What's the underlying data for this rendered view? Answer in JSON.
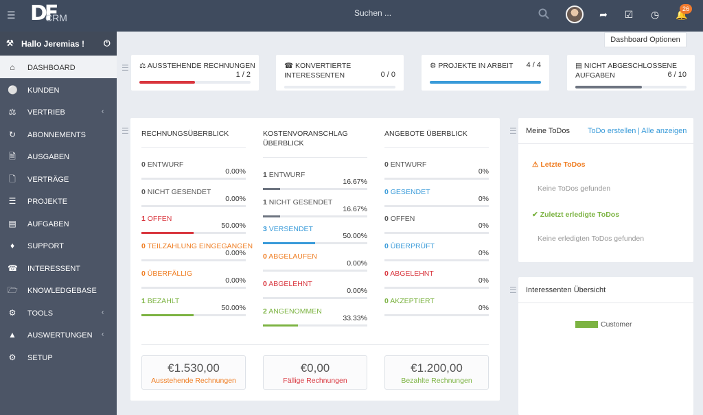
{
  "colors": {
    "red": "#d9363e",
    "blue": "#3a9bd9",
    "gray": "#6d7480",
    "green": "#7cb342",
    "orange": "#ef7d22"
  },
  "topbar": {
    "logo_main": "DF",
    "logo_sub": "CRM",
    "search_placeholder": "Suchen ...",
    "notification_count": "26"
  },
  "sidebar": {
    "greeting": "Hallo Jeremias !",
    "items": [
      {
        "label": "DASHBOARD",
        "icon": "home-icon"
      },
      {
        "label": "KUNDEN",
        "icon": "user-icon"
      },
      {
        "label": "VERTRIEB",
        "icon": "balance-scale-icon"
      },
      {
        "label": "ABONNEMENTS",
        "icon": "refresh-icon"
      },
      {
        "label": "AUSGABEN",
        "icon": "file-text-icon"
      },
      {
        "label": "VERTRÄGE",
        "icon": "file-icon"
      },
      {
        "label": "PROJEKTE",
        "icon": "bars-icon"
      },
      {
        "label": "AUFGABEN",
        "icon": "tasks-icon"
      },
      {
        "label": "SUPPORT",
        "icon": "ticket-icon"
      },
      {
        "label": "INTERESSENT",
        "icon": "tty-icon"
      },
      {
        "label": "KNOWLEDGEBASE",
        "icon": "folder-open-icon"
      },
      {
        "label": "TOOLS",
        "icon": "cogs-icon"
      },
      {
        "label": "AUSWERTUNGEN",
        "icon": "area-chart-icon"
      },
      {
        "label": "SETUP",
        "icon": "cog-icon"
      }
    ]
  },
  "dashboard_options": "Dashboard Optionen",
  "stats": [
    {
      "title": "AUSSTEHENDE RECHNUNGEN",
      "value": "1 / 2",
      "fraction": 0.5,
      "color": "#d9363e"
    },
    {
      "title": "KONVERTIERTE INTERESSENTEN",
      "value": "0 / 0",
      "fraction": 0,
      "color": "#3a9bd9"
    },
    {
      "title": "PROJEKTE IN ARBEIT",
      "value": "4 / 4",
      "fraction": 1,
      "color": "#3a9bd9"
    },
    {
      "title": "NICHT ABGESCHLOSSENE AUFGABEN",
      "value": "6 / 10",
      "fraction": 0.6,
      "color": "#6d7480"
    }
  ],
  "overview": {
    "invoices": {
      "title": "RECHNUNGSÜBERBLICK",
      "rows": [
        {
          "count": "0",
          "label": "ENTWURF",
          "pct": "0.00%",
          "fraction": 0,
          "color": "gray"
        },
        {
          "count": "0",
          "label": "NICHT GESENDET",
          "pct": "0.00%",
          "fraction": 0,
          "color": "gray"
        },
        {
          "count": "1",
          "label": "OFFEN",
          "pct": "50.00%",
          "fraction": 0.5,
          "color": "red"
        },
        {
          "count": "0",
          "label": "TEILZAHLUNG EINGEGANGEN",
          "pct": "0.00%",
          "fraction": 0,
          "color": "orange"
        },
        {
          "count": "0",
          "label": "ÜBERFÄLLIG",
          "pct": "0.00%",
          "fraction": 0,
          "color": "orange"
        },
        {
          "count": "1",
          "label": "BEZAHLT",
          "pct": "50.00%",
          "fraction": 0.5,
          "color": "green"
        }
      ]
    },
    "estimates": {
      "title": "KOSTENVORANSCHLAG ÜBERBLICK",
      "rows": [
        {
          "count": "1",
          "label": "ENTWURF",
          "pct": "16.67%",
          "fraction": 0.1667,
          "color": "gray"
        },
        {
          "count": "1",
          "label": "NICHT GESENDET",
          "pct": "16.67%",
          "fraction": 0.1667,
          "color": "gray"
        },
        {
          "count": "3",
          "label": "VERSENDET",
          "pct": "50.00%",
          "fraction": 0.5,
          "color": "blue"
        },
        {
          "count": "0",
          "label": "ABGELAUFEN",
          "pct": "0.00%",
          "fraction": 0,
          "color": "orange"
        },
        {
          "count": "0",
          "label": "ABGELEHNT",
          "pct": "0.00%",
          "fraction": 0,
          "color": "red"
        },
        {
          "count": "2",
          "label": "ANGENOMMEN",
          "pct": "33.33%",
          "fraction": 0.3333,
          "color": "green"
        }
      ]
    },
    "proposals": {
      "title": "ANGEBOTE ÜBERBLICK",
      "rows": [
        {
          "count": "0",
          "label": "ENTWURF",
          "pct": "0%",
          "fraction": 0,
          "color": "gray"
        },
        {
          "count": "0",
          "label": "GESENDET",
          "pct": "0%",
          "fraction": 0,
          "color": "blue"
        },
        {
          "count": "0",
          "label": "OFFEN",
          "pct": "0%",
          "fraction": 0,
          "color": "gray"
        },
        {
          "count": "0",
          "label": "ÜBERPRÜFT",
          "pct": "0%",
          "fraction": 0,
          "color": "blue"
        },
        {
          "count": "0",
          "label": "ABGELEHNT",
          "pct": "0%",
          "fraction": 0,
          "color": "red"
        },
        {
          "count": "0",
          "label": "AKZEPTIERT",
          "pct": "0%",
          "fraction": 0,
          "color": "green"
        }
      ]
    },
    "totals": [
      {
        "amount": "€1.530,00",
        "caption": "Ausstehende Rechnungen",
        "color": "orange"
      },
      {
        "amount": "€0,00",
        "caption": "Fällige Rechnungen",
        "color": "red"
      },
      {
        "amount": "€1.200,00",
        "caption": "Bezahlte Rechnungen",
        "color": "green"
      }
    ]
  },
  "todos": {
    "title": "Meine ToDos",
    "create_link": "ToDo erstellen",
    "all_link": "| Alle anzeigen",
    "latest_title": "Letzte ToDos",
    "latest_empty": "Keine ToDos gefunden",
    "done_title": "Zuletzt erledigte ToDos",
    "done_empty": "Keine erledigten ToDos gefunden"
  },
  "leads": {
    "title": "Interessenten Übersicht",
    "legend": "Customer",
    "legend_color": "#7cb342"
  }
}
